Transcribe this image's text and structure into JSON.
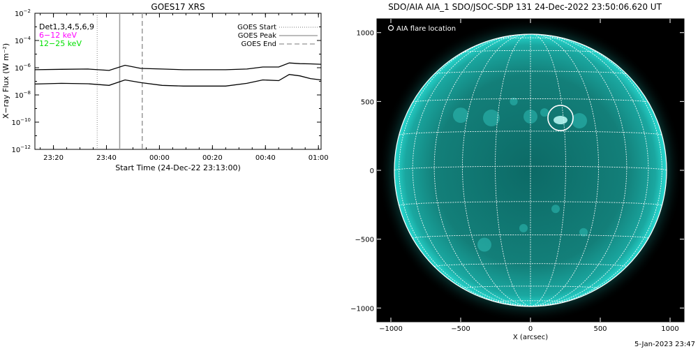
{
  "left_panel": {
    "title": "GOES17 XRS",
    "ylabel": "X−ray Flux (W m⁻²)",
    "xlabel": "Start Time (24-Dec-22 23:13:00)",
    "det_label": "Det1,3,4,5,6,9",
    "channels": [
      {
        "label": "6−12 keV",
        "color": "#ff00ff"
      },
      {
        "label": "12−25 keV",
        "color": "#00ff00"
      }
    ],
    "legend": [
      {
        "label": "GOES Start",
        "style": "dotted"
      },
      {
        "label": "GOES Peak",
        "style": "solid"
      },
      {
        "label": "GOES End",
        "style": "dashed"
      }
    ]
  },
  "right_panel": {
    "title": "SDO/AIA AIA_1 SDO/JSOC-SDP 131 24-Dec-2022 23:50:06.620 UT",
    "legend_label": "AIA flare location",
    "xlabel": "X (arcsec)",
    "footer": "5-Jan-2023 23:47",
    "accent_color": "#1fd6c8"
  },
  "chart_data": [
    {
      "type": "line",
      "title": "GOES17 XRS",
      "xlabel": "Start Time (24-Dec-22 23:13:00)",
      "ylabel": "X−ray Flux (W m⁻²)",
      "y_scale": "log",
      "x_unit": "minutes after 23:13:00",
      "xlim": [
        0,
        108
      ],
      "ylim_exp": [
        -12,
        -2
      ],
      "x_ticks": [
        {
          "label": "23:20",
          "x": 7
        },
        {
          "label": "23:40",
          "x": 27
        },
        {
          "label": "00:00",
          "x": 47
        },
        {
          "label": "00:20",
          "x": 67
        },
        {
          "label": "00:40",
          "x": 87
        },
        {
          "label": "01:00",
          "x": 107
        }
      ],
      "y_tick_exponents": [
        -12,
        -10,
        -8,
        -6,
        -4,
        -2
      ],
      "series": [
        {
          "name": "upper",
          "x": [
            0,
            10,
            20,
            28,
            34,
            40,
            48,
            56,
            64,
            72,
            80,
            86,
            92,
            96,
            100,
            104,
            108
          ],
          "log_y": [
            -6.15,
            -6.12,
            -6.1,
            -6.2,
            -5.82,
            -6.05,
            -6.1,
            -6.15,
            -6.15,
            -6.15,
            -6.1,
            -5.95,
            -5.95,
            -5.65,
            -5.7,
            -5.72,
            -5.75
          ]
        },
        {
          "name": "lower",
          "x": [
            0,
            10,
            20,
            28,
            34,
            40,
            48,
            56,
            64,
            72,
            80,
            86,
            92,
            96,
            100,
            104,
            108
          ],
          "log_y": [
            -7.2,
            -7.15,
            -7.18,
            -7.3,
            -6.9,
            -7.1,
            -7.3,
            -7.35,
            -7.35,
            -7.35,
            -7.15,
            -6.9,
            -6.95,
            -6.5,
            -6.6,
            -6.8,
            -6.9
          ]
        }
      ],
      "markers": {
        "start": 23.5,
        "peak": 32,
        "end": 40.5
      }
    },
    {
      "type": "scatter",
      "title": "SDO/AIA AIA_1 SDO/JSOC-SDP 131 24-Dec-2022 23:50:06.620 UT",
      "xlabel": "X (arcsec)",
      "xlim": [
        -1100,
        1100
      ],
      "ylim": [
        -1100,
        1100
      ],
      "x_ticks": [
        -1000,
        -500,
        0,
        500,
        1000
      ],
      "y_ticks": [
        -1000,
        -500,
        0,
        500,
        1000
      ],
      "solar_radius": 975,
      "flare_location": {
        "x": 215,
        "y": 380,
        "radius": 95
      }
    }
  ]
}
